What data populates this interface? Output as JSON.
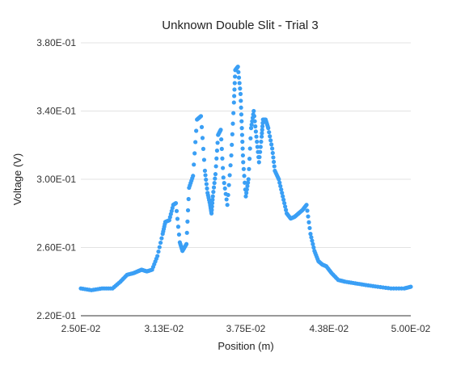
{
  "chart_data": {
    "type": "scatter",
    "title": "Unknown Double Slit - Trial 3",
    "xlabel": "Position (m)",
    "ylabel": "Voltage (V)",
    "xlim": [
      0.025,
      0.05
    ],
    "ylim": [
      0.22,
      0.38
    ],
    "x_ticks": [
      0.025,
      0.0313,
      0.0375,
      0.0438,
      0.05
    ],
    "x_tick_labels": [
      "2.50E-02",
      "3.13E-02",
      "3.75E-02",
      "4.38E-02",
      "5.00E-02"
    ],
    "y_ticks": [
      0.22,
      0.26,
      0.3,
      0.34,
      0.38
    ],
    "y_tick_labels": [
      "2.20E-01",
      "2.60E-01",
      "3.00E-01",
      "3.40E-01",
      "3.80E-01"
    ],
    "grid": true,
    "legend": "none",
    "series": [
      {
        "color": "#3a9ff5",
        "x": [
          0.025,
          0.0258,
          0.0266,
          0.0274,
          0.028,
          0.0285,
          0.029,
          0.0293,
          0.0296,
          0.03,
          0.0304,
          0.0308,
          0.0312,
          0.0314,
          0.0317,
          0.032,
          0.0322,
          0.0325,
          0.0327,
          0.033,
          0.0332,
          0.0335,
          0.0338,
          0.0341,
          0.0344,
          0.0346,
          0.0348,
          0.0349,
          0.035,
          0.0352,
          0.0354,
          0.0356,
          0.0358,
          0.0361,
          0.0364,
          0.0366,
          0.0367,
          0.0369,
          0.0371,
          0.0372,
          0.0373,
          0.0375,
          0.0377,
          0.0379,
          0.0381,
          0.0383,
          0.0385,
          0.0387,
          0.0388,
          0.039,
          0.0392,
          0.0395,
          0.0397,
          0.04,
          0.0403,
          0.0406,
          0.0409,
          0.0412,
          0.0415,
          0.0418,
          0.0421,
          0.0424,
          0.0427,
          0.043,
          0.0433,
          0.0436,
          0.044,
          0.0445,
          0.045,
          0.0458,
          0.0466,
          0.0475,
          0.0485,
          0.0495,
          0.05
        ],
        "y": [
          0.236,
          0.235,
          0.236,
          0.236,
          0.24,
          0.244,
          0.245,
          0.246,
          0.247,
          0.246,
          0.247,
          0.255,
          0.268,
          0.275,
          0.276,
          0.285,
          0.286,
          0.263,
          0.258,
          0.262,
          0.295,
          0.302,
          0.335,
          0.337,
          0.305,
          0.292,
          0.285,
          0.28,
          0.29,
          0.303,
          0.326,
          0.329,
          0.301,
          0.285,
          0.314,
          0.345,
          0.364,
          0.366,
          0.35,
          0.33,
          0.31,
          0.29,
          0.3,
          0.33,
          0.34,
          0.325,
          0.31,
          0.325,
          0.335,
          0.335,
          0.33,
          0.318,
          0.305,
          0.3,
          0.29,
          0.28,
          0.277,
          0.278,
          0.28,
          0.282,
          0.285,
          0.268,
          0.258,
          0.252,
          0.25,
          0.249,
          0.245,
          0.241,
          0.24,
          0.239,
          0.238,
          0.237,
          0.236,
          0.236,
          0.237
        ]
      }
    ]
  }
}
